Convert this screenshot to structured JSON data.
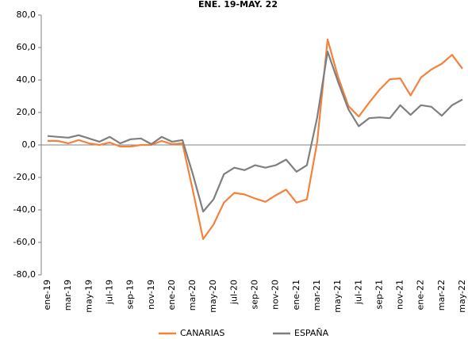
{
  "chart_data": {
    "type": "line",
    "title": "ENE. 19-MAY. 22",
    "categories": [
      "ene-19",
      null,
      "mar-19",
      null,
      "may-19",
      null,
      "jul-19",
      null,
      "sep-19",
      null,
      "nov-19",
      null,
      "ene-20",
      null,
      "mar-20",
      null,
      "may-20",
      null,
      "jul-20",
      null,
      "sep-20",
      null,
      "nov-20",
      null,
      "ene-21",
      null,
      "mar-21",
      null,
      "may-21",
      null,
      "jul-21",
      null,
      "sep-21",
      null,
      "nov-21",
      null,
      "ene-22",
      null,
      "mar-22",
      null,
      "may-22"
    ],
    "series": [
      {
        "name": "CANARIAS",
        "color": "#f4823c",
        "values": [
          2.5,
          2.5,
          1,
          3,
          1,
          0,
          1.5,
          -1,
          -1,
          0,
          0,
          2.5,
          0.5,
          1,
          -28,
          -58,
          -49,
          -35.5,
          -29.5,
          -30.5,
          -33,
          -35,
          -31,
          -27.5,
          -35.5,
          -33.5,
          2,
          65,
          42,
          24,
          17.5,
          26,
          34,
          40.5,
          41,
          30.5,
          41.5,
          46.5,
          50,
          55.5,
          47
        ]
      },
      {
        "name": "ESPAÑA",
        "color": "#7f7f7f",
        "values": [
          5.5,
          5,
          4.5,
          6,
          4,
          2,
          5,
          1,
          3.5,
          4,
          0.5,
          5,
          2,
          3,
          -18,
          -41,
          -33.5,
          -18,
          -14,
          -15.5,
          -12.5,
          -14,
          -12.5,
          -9,
          -16.5,
          -12.5,
          17,
          57.5,
          39,
          22,
          11.5,
          16.5,
          17,
          16.5,
          24.5,
          18.5,
          24.5,
          23.5,
          18,
          24.5,
          28
        ]
      }
    ],
    "ylim": [
      -80,
      80
    ],
    "yticks": [
      {
        "value": -80,
        "label": "-80,0"
      },
      {
        "value": -60,
        "label": "-60,0"
      },
      {
        "value": -40,
        "label": "-40,0"
      },
      {
        "value": -20,
        "label": "-20,0"
      },
      {
        "value": 0,
        "label": "0,0"
      },
      {
        "value": 20,
        "label": "20,0"
      },
      {
        "value": 40,
        "label": "40,0"
      },
      {
        "value": 60,
        "label": "60,0"
      },
      {
        "value": 80,
        "label": "80,0"
      }
    ],
    "legend": "bottom"
  }
}
